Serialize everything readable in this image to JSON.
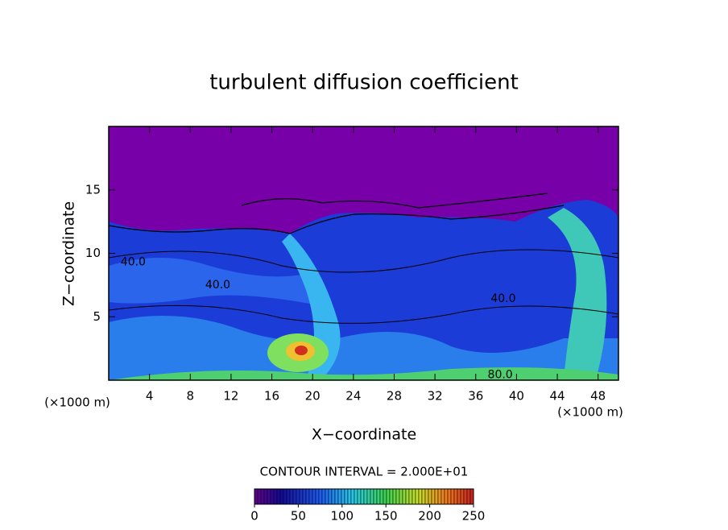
{
  "chart_data": {
    "type": "contour",
    "title": "turbulent diffusion coefficient",
    "xlabel": "X−coordinate",
    "ylabel": "Z−coordinate",
    "x_unit": "(×1000 m)",
    "y_unit": "(×1000 m)",
    "xlim": [
      0,
      50
    ],
    "xticks": [
      4,
      8,
      12,
      16,
      20,
      24,
      28,
      32,
      36,
      40,
      44,
      48
    ],
    "ylim": [
      0,
      20
    ],
    "yticks": [
      5,
      10,
      15
    ],
    "contour_interval": "CONTOUR INTERVAL = 2.000E+01",
    "contour_labels": [
      {
        "value": 40,
        "label": "40.0",
        "x": 2.4,
        "y": 9.3
      },
      {
        "value": 40,
        "label": "40.0",
        "x": 10.7,
        "y": 7.5
      },
      {
        "value": 40,
        "label": "40.0",
        "x": 38.7,
        "y": 6.4
      },
      {
        "value": 80,
        "label": "80.0",
        "x": 38.4,
        "y": 0.4
      }
    ],
    "clim": [
      0,
      250
    ],
    "cticks": [
      0,
      50,
      100,
      150,
      200,
      250
    ]
  }
}
